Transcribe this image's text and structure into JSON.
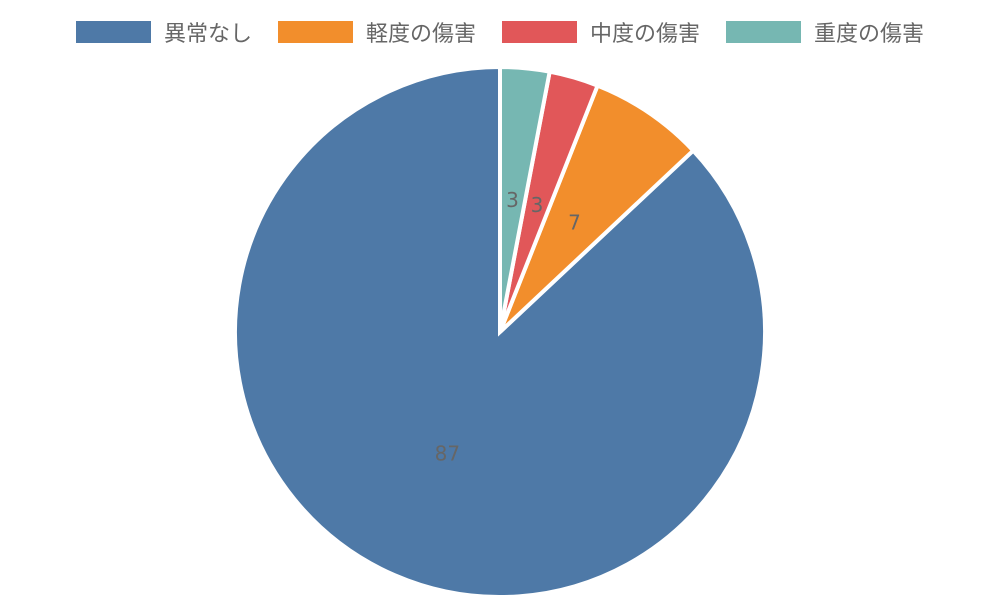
{
  "chart_data": {
    "type": "pie",
    "categories": [
      "異常なし",
      "軽度の傷害",
      "中度の傷害",
      "重度の傷害"
    ],
    "values": [
      87,
      7,
      3,
      3
    ],
    "colors": [
      "#4e79a7",
      "#f28e2c",
      "#e15759",
      "#76b7b2"
    ],
    "value_labels": [
      "87",
      "7",
      "3",
      "3"
    ],
    "legend_position": "top",
    "start_angle": "top",
    "direction": "clockwise"
  }
}
